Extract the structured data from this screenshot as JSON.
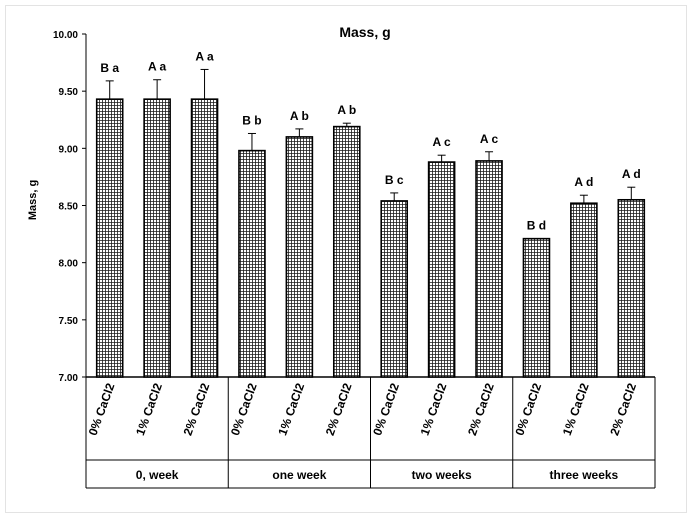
{
  "chart_data": {
    "type": "bar",
    "title": "Mass, g",
    "ylabel": "Mass, g",
    "xlabel": "",
    "ylim": [
      7.0,
      10.0
    ],
    "yticks": [
      "7.00",
      "7.50",
      "8.00",
      "8.50",
      "9.00",
      "9.50",
      "10.00"
    ],
    "grid": false,
    "legend": "none",
    "groups": [
      {
        "label": "0, week",
        "bars": [
          {
            "category": "0% CaCl2",
            "value": 9.43,
            "error": 0.16,
            "annotation": "B a"
          },
          {
            "category": "1% CaCl2",
            "value": 9.43,
            "error": 0.17,
            "annotation": "A a"
          },
          {
            "category": "2% CaCl2",
            "value": 9.43,
            "error": 0.26,
            "annotation": "A a"
          }
        ]
      },
      {
        "label": "one week",
        "bars": [
          {
            "category": "0% CaCl2",
            "value": 8.98,
            "error": 0.15,
            "annotation": "B b"
          },
          {
            "category": "1% CaCl2",
            "value": 9.1,
            "error": 0.07,
            "annotation": "A b"
          },
          {
            "category": "2% CaCl2",
            "value": 9.19,
            "error": 0.03,
            "annotation": "A b"
          }
        ]
      },
      {
        "label": "two weeks",
        "bars": [
          {
            "category": "0% CaCl2",
            "value": 8.54,
            "error": 0.07,
            "annotation": "B c"
          },
          {
            "category": "1% CaCl2",
            "value": 8.88,
            "error": 0.06,
            "annotation": "A c"
          },
          {
            "category": "2% CaCl2",
            "value": 8.89,
            "error": 0.08,
            "annotation": "A c"
          }
        ]
      },
      {
        "label": "three weeks",
        "bars": [
          {
            "category": "0% CaCl2",
            "value": 8.21,
            "error": 0.0,
            "annotation": "B d"
          },
          {
            "category": "1% CaCl2",
            "value": 8.52,
            "error": 0.07,
            "annotation": "A d"
          },
          {
            "category": "2% CaCl2",
            "value": 8.55,
            "error": 0.11,
            "annotation": "A d"
          }
        ]
      }
    ]
  },
  "colors": {
    "bar_fill_pattern": "cross-hatch",
    "bar_stroke": "#000000",
    "axis": "#000000",
    "frame": "#e3e3e3"
  }
}
